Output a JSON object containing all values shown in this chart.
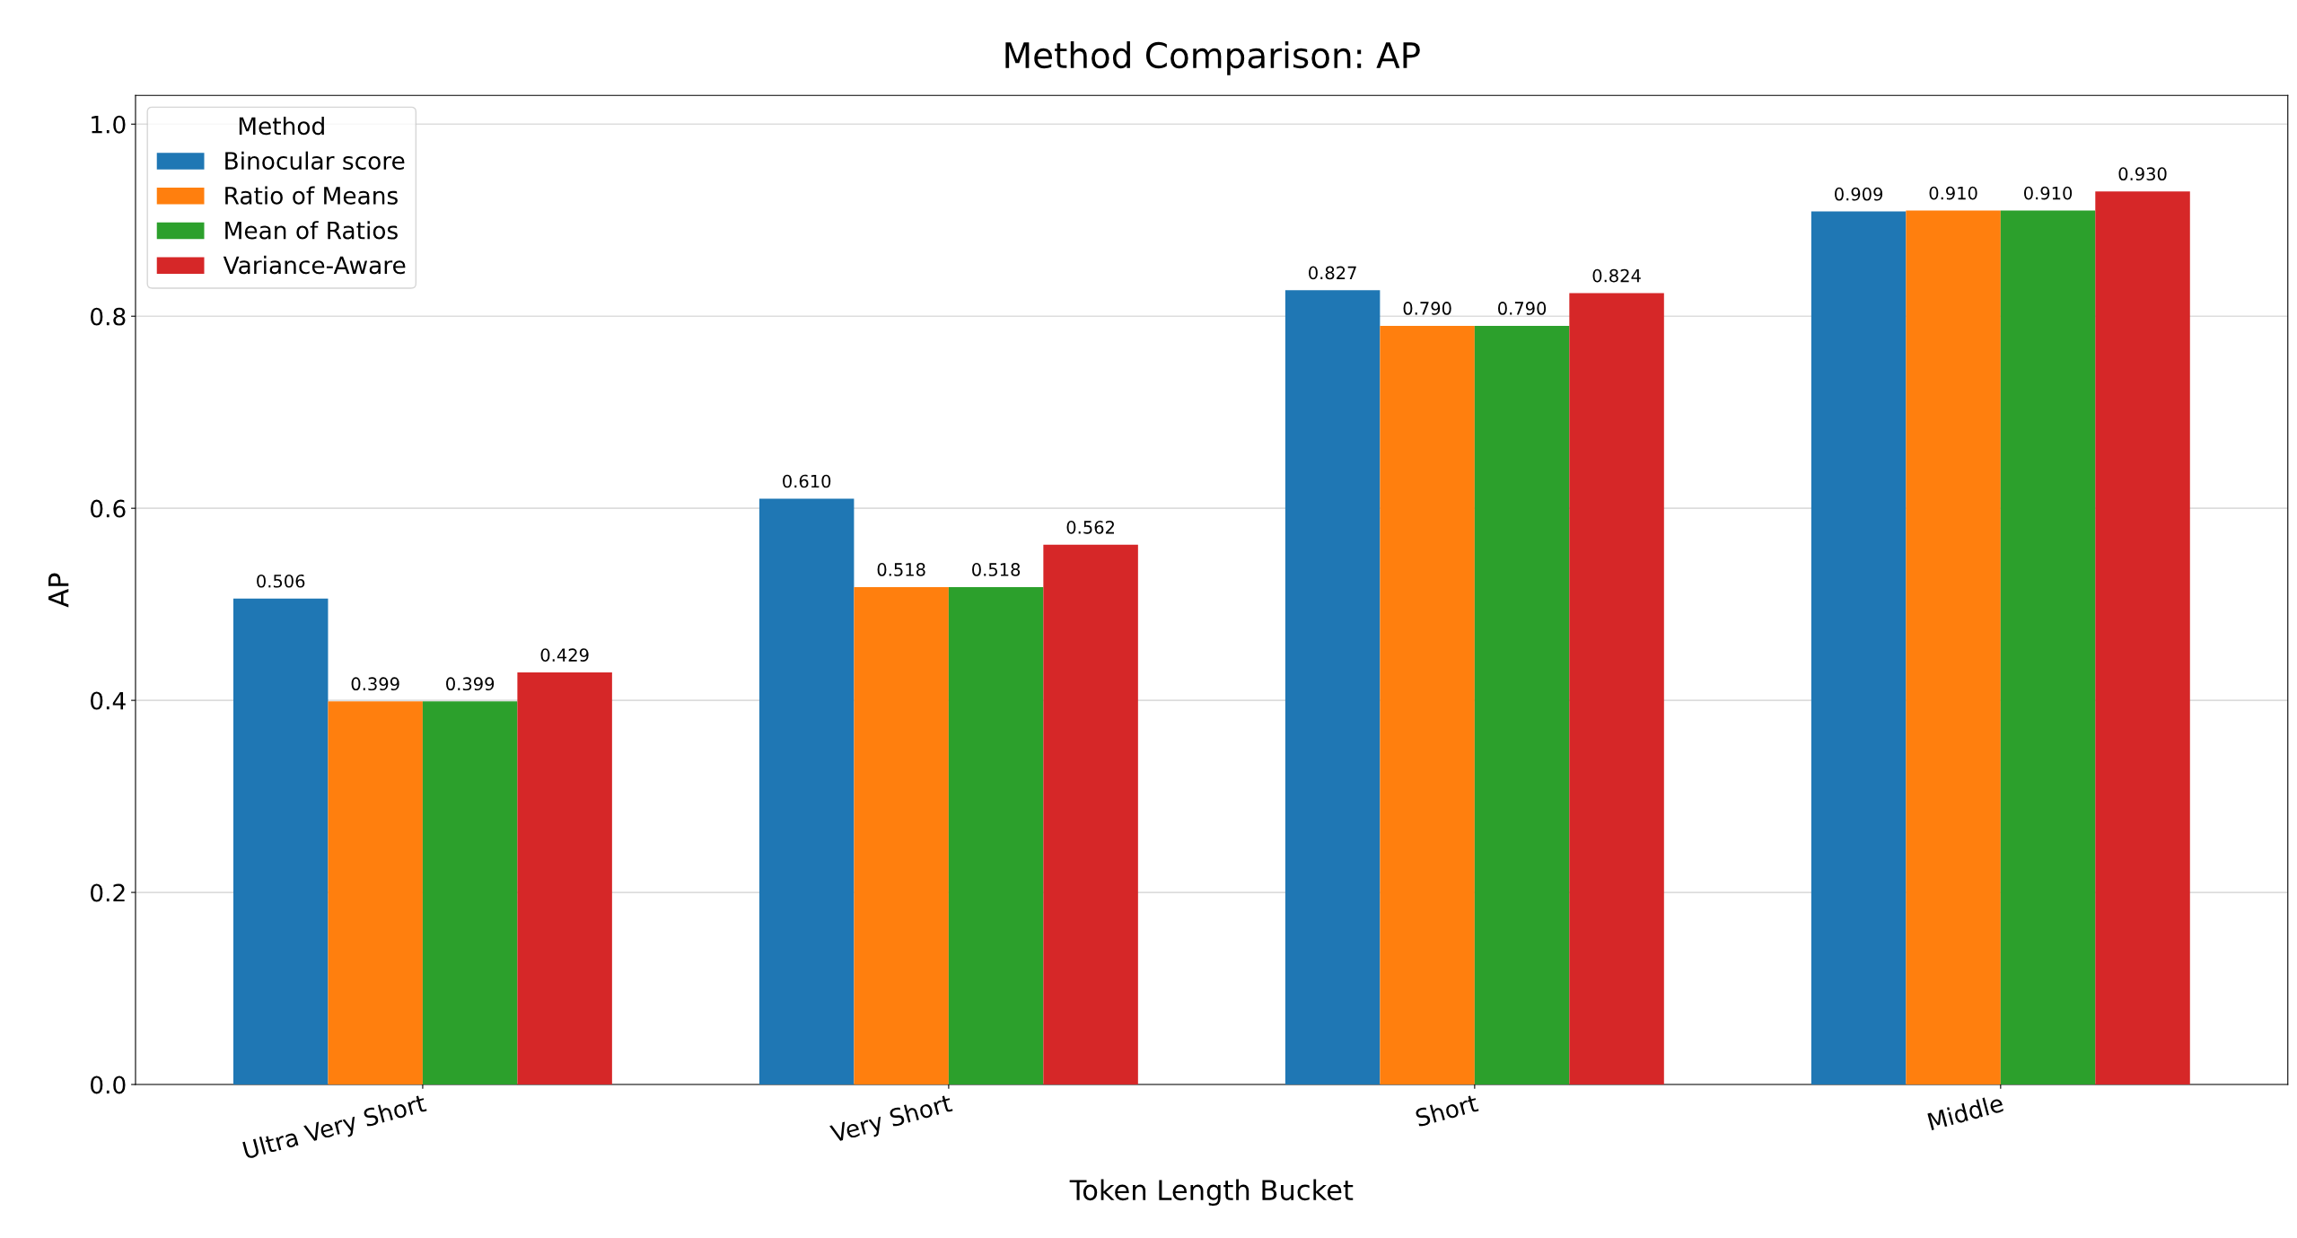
{
  "chart_data": {
    "type": "bar",
    "title": "Method Comparison: AP",
    "xlabel": "Token Length Bucket",
    "ylabel": "AP",
    "legend_title": "Method",
    "categories": [
      "Ultra Very Short",
      "Very Short",
      "Short",
      "Middle"
    ],
    "series": [
      {
        "name": "Binocular score",
        "color": "#1f77b4",
        "values": [
          0.506,
          0.61,
          0.827,
          0.909
        ],
        "value_labels": [
          "0.506",
          "0.610",
          "0.827",
          "0.909"
        ]
      },
      {
        "name": "Ratio of Means",
        "color": "#ff7f0e",
        "values": [
          0.399,
          0.518,
          0.79,
          0.91
        ],
        "value_labels": [
          "0.399",
          "0.518",
          "0.790",
          "0.910"
        ]
      },
      {
        "name": "Mean of Ratios",
        "color": "#2ca02c",
        "values": [
          0.399,
          0.518,
          0.79,
          0.91
        ],
        "value_labels": [
          "0.399",
          "0.518",
          "0.790",
          "0.910"
        ]
      },
      {
        "name": "Variance-Aware",
        "color": "#d62728",
        "values": [
          0.429,
          0.562,
          0.824,
          0.93
        ],
        "value_labels": [
          "0.429",
          "0.562",
          "0.824",
          "0.930"
        ]
      }
    ],
    "ylim": [
      0,
      1.03
    ],
    "yticks": [
      {
        "value": 0,
        "label": "0.0"
      },
      {
        "value": 0.2,
        "label": "0.2"
      },
      {
        "value": 0.4,
        "label": "0.4"
      },
      {
        "value": 0.6,
        "label": "0.6"
      },
      {
        "value": 0.8,
        "label": "0.8"
      },
      {
        "value": 1.0,
        "label": "1.0"
      }
    ],
    "grid": "y",
    "legend": "top left"
  }
}
